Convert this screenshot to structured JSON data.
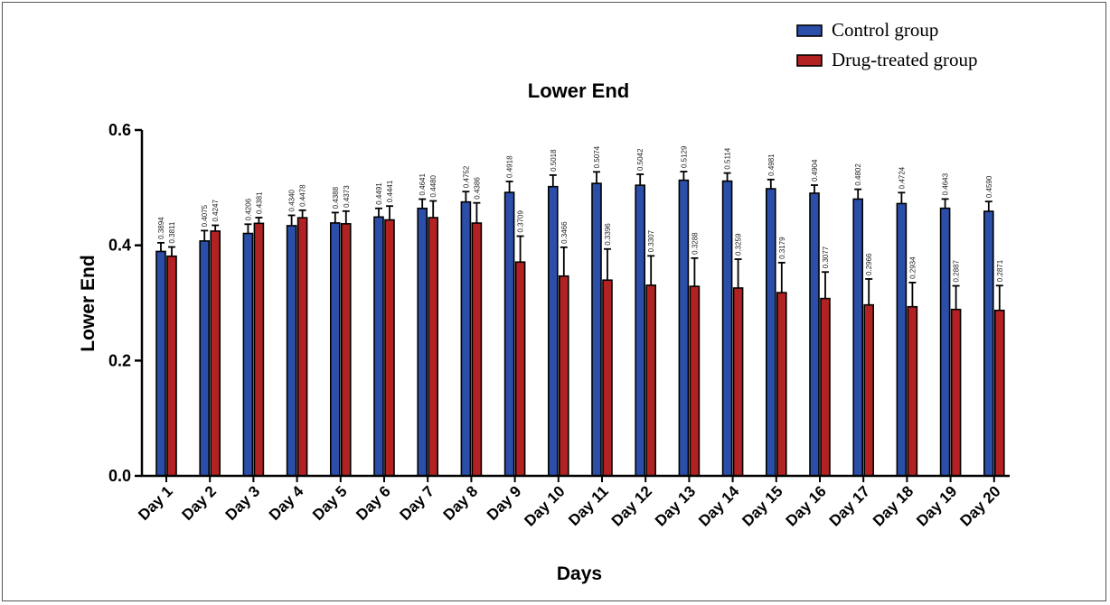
{
  "chart_data": {
    "type": "bar",
    "title": "Lower End",
    "xlabel": "Days",
    "ylabel": "Lower End",
    "ylim": [
      0,
      0.6
    ],
    "yticks": [
      "0.0",
      "0.2",
      "0.4",
      "0.6"
    ],
    "legend_position": "top-right",
    "categories": [
      "Day 1",
      "Day 2",
      "Day 3",
      "Day 4",
      "Day 5",
      "Day 6",
      "Day 7",
      "Day 8",
      "Day 9",
      "Day 10",
      "Day 11",
      "Day 12",
      "Day 13",
      "Day 14",
      "Day 15",
      "Day 16",
      "Day 17",
      "Day 18",
      "Day 19",
      "Day 20"
    ],
    "series": [
      {
        "name": "Control group",
        "color": "#2b4fa8",
        "values": [
          0.3894,
          0.4075,
          0.4206,
          0.434,
          0.4388,
          0.4491,
          0.4641,
          0.4752,
          0.4918,
          0.5018,
          0.5074,
          0.5042,
          0.5129,
          0.5114,
          0.4981,
          0.4904,
          0.4802,
          0.4724,
          0.4643,
          0.459
        ],
        "labels": [
          "0.3894",
          "0.4075",
          "0.4206",
          "0.4340",
          "0.4388",
          "0.4491",
          "0.4641",
          "0.4752",
          "0.4918",
          "0.5018",
          "0.5074",
          "0.5042",
          "0.5129",
          "0.5114",
          "0.4981",
          "0.4904",
          "0.4802",
          "0.4724",
          "0.4643",
          "0.4590"
        ],
        "errors": [
          0.015,
          0.018,
          0.016,
          0.018,
          0.018,
          0.015,
          0.016,
          0.018,
          0.019,
          0.02,
          0.02,
          0.019,
          0.015,
          0.014,
          0.016,
          0.014,
          0.017,
          0.019,
          0.016,
          0.017
        ]
      },
      {
        "name": "Drug-treated group",
        "color": "#b22222",
        "values": [
          0.3811,
          0.4247,
          0.4381,
          0.4478,
          0.4373,
          0.4441,
          0.448,
          0.4386,
          0.3709,
          0.3466,
          0.3396,
          0.3307,
          0.3288,
          0.3259,
          0.3179,
          0.3077,
          0.2966,
          0.2934,
          0.2887,
          0.2871
        ],
        "labels": [
          "0.3811",
          "0.4247",
          "0.4381",
          "0.4478",
          "0.4373",
          "0.4441",
          "0.4480",
          "0.4386",
          "0.3709",
          "0.3466",
          "0.3396",
          "0.3307",
          "0.3288",
          "0.3259",
          "0.3179",
          "0.3077",
          "0.2966",
          "0.2934",
          "0.2887",
          "0.2871"
        ],
        "errors": [
          0.016,
          0.01,
          0.01,
          0.013,
          0.022,
          0.024,
          0.029,
          0.035,
          0.045,
          0.05,
          0.054,
          0.051,
          0.049,
          0.05,
          0.052,
          0.046,
          0.045,
          0.042,
          0.041,
          0.043
        ]
      }
    ]
  }
}
